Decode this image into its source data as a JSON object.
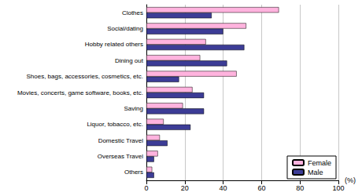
{
  "chart_data": {
    "type": "bar",
    "orientation": "horizontal",
    "categories": [
      "Clothes",
      "Social/dating",
      "Hobby related others",
      "Dining out",
      "Shoes, bags, accessories, cosmetics, etc.",
      "Movies, concerts, game software, books, etc.",
      "Saving",
      "Liquor, tobacco, etc.",
      "Domestic Travel",
      "Overseas Travel",
      "Others"
    ],
    "series": [
      {
        "name": "Female",
        "color": "#ffb3de",
        "values": [
          69,
          52,
          31,
          28,
          47,
          24,
          19,
          9,
          7,
          6,
          3
        ]
      },
      {
        "name": "Male",
        "color": "#3c3c96",
        "values": [
          34,
          40,
          51,
          42,
          17,
          30,
          30,
          23,
          11,
          4,
          4
        ]
      }
    ],
    "xlabel": "(%)",
    "xlim": [
      0,
      100
    ],
    "xticks": [
      0,
      20,
      40,
      60,
      80,
      100
    ],
    "grid": true,
    "legend": "lower right"
  }
}
